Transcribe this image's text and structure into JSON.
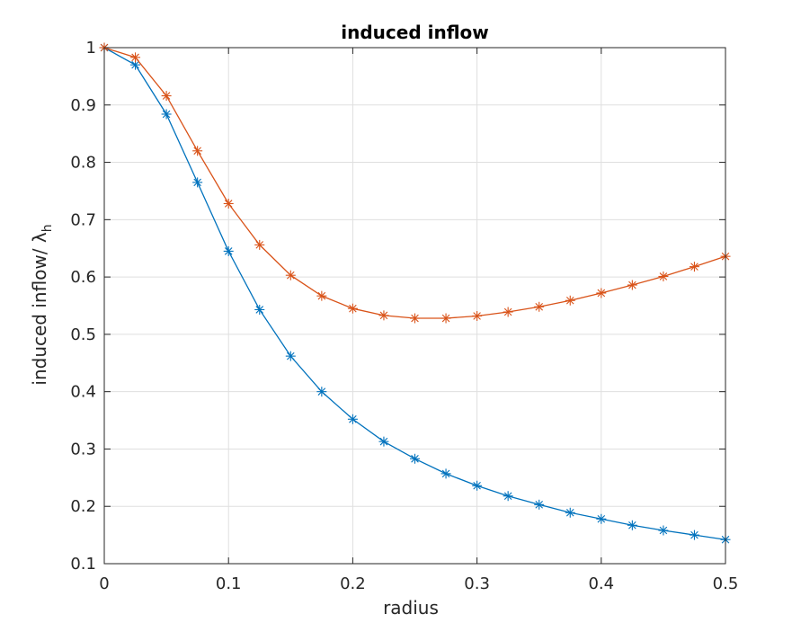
{
  "chart_data": {
    "type": "line",
    "title": "induced inflow",
    "xlabel": "radius",
    "ylabel_main": "induced inflow/ ",
    "ylabel_symbol": "λ",
    "ylabel_subscript": "h",
    "xlim": [
      0,
      0.5
    ],
    "ylim": [
      0.1,
      1
    ],
    "xticks": [
      0,
      0.1,
      0.2,
      0.3,
      0.4,
      0.5
    ],
    "xtick_labels": [
      "0",
      "0.1",
      "0.2",
      "0.3",
      "0.4",
      "0.5"
    ],
    "yticks": [
      0.1,
      0.2,
      0.3,
      0.4,
      0.5,
      0.6,
      0.7,
      0.8,
      0.9,
      1
    ],
    "ytick_labels": [
      "0.1",
      "0.2",
      "0.3",
      "0.4",
      "0.5",
      "0.6",
      "0.7",
      "0.8",
      "0.9",
      "1"
    ],
    "grid": true,
    "legend": "none",
    "marker": "asterisk",
    "x": [
      0,
      0.025,
      0.05,
      0.075,
      0.1,
      0.125,
      0.15,
      0.175,
      0.2,
      0.225,
      0.25,
      0.275,
      0.3,
      0.325,
      0.35,
      0.375,
      0.4,
      0.425,
      0.45,
      0.475,
      0.5
    ],
    "series": [
      {
        "color": "#0072BD",
        "values": [
          1.0,
          0.97,
          0.884,
          0.765,
          0.645,
          0.543,
          0.462,
          0.4,
          0.352,
          0.313,
          0.283,
          0.257,
          0.236,
          0.218,
          0.203,
          0.189,
          0.178,
          0.167,
          0.158,
          0.15,
          0.142
        ]
      },
      {
        "color": "#D95319",
        "values": [
          1.0,
          0.983,
          0.916,
          0.82,
          0.728,
          0.656,
          0.603,
          0.567,
          0.545,
          0.533,
          0.528,
          0.528,
          0.532,
          0.539,
          0.548,
          0.559,
          0.572,
          0.586,
          0.601,
          0.618,
          0.636
        ]
      }
    ]
  }
}
